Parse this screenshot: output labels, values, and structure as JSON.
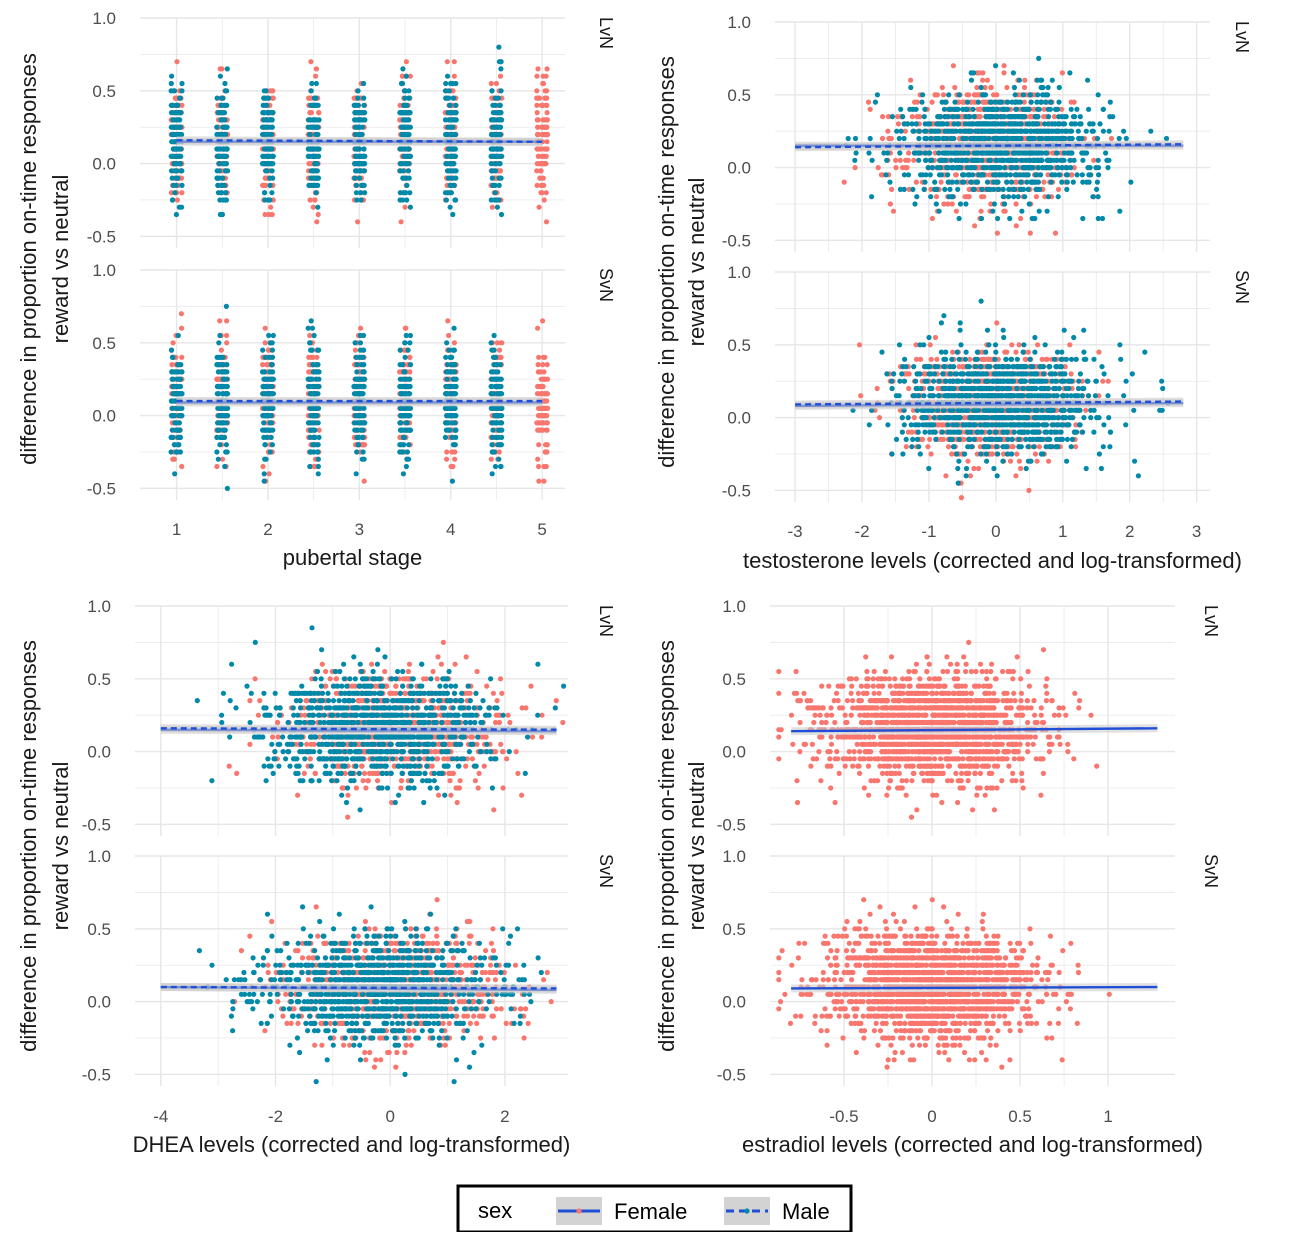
{
  "colors": {
    "female": "#F8766D",
    "male": "#0089A8",
    "fit_line": "#1F4FD6",
    "grid": "#E6E6E6",
    "ribbon": "#C9C9C9"
  },
  "legend": {
    "title": "sex",
    "items": [
      {
        "label": "Female",
        "linetype": "solid"
      },
      {
        "label": "Male",
        "linetype": "dashed"
      }
    ]
  },
  "chart_data": [
    {
      "type": "scatter",
      "xlabel": "pubertal stage",
      "ylabel_lines": [
        "difference in proportion on-time responses",
        "reward vs neutral"
      ],
      "xlim": [
        0.6,
        5.25
      ],
      "ylim": [
        -0.58,
        1.0
      ],
      "xticks": [
        1,
        2,
        3,
        4,
        5
      ],
      "yticks": [
        -0.5,
        0.0,
        0.5,
        1.0
      ],
      "grid": true,
      "facets": [
        {
          "label": "LvN",
          "fits": {
            "Female": [
              [
                1,
                0.15
              ],
              [
                5,
                0.15
              ]
            ],
            "Male": [
              [
                1,
                0.16
              ],
              [
                5,
                0.15
              ]
            ]
          }
        },
        {
          "label": "SvN",
          "fits": {
            "Female": [
              [
                1,
                0.09
              ],
              [
                5,
                0.09
              ]
            ],
            "Male": [
              [
                1,
                0.1
              ],
              [
                5,
                0.1
              ]
            ]
          }
        }
      ],
      "points": {
        "female": {
          "x": [
            1,
            1.5,
            2,
            2.5,
            3,
            3.5,
            4,
            4.5,
            5
          ],
          "y_range": [
            -0.45,
            0.7
          ],
          "spread": 0.06
        },
        "male": {
          "x": [
            1,
            1.5,
            2,
            2.5,
            3,
            3.5,
            4,
            4.5
          ],
          "y_range": [
            -0.5,
            0.8
          ],
          "spread": 0.06
        }
      }
    },
    {
      "type": "scatter",
      "xlabel": "testosterone levels (corrected and log-transformed)",
      "ylabel_lines": [
        "difference in proportion on-time responses",
        "reward vs neutral"
      ],
      "xlim": [
        -3.3,
        3.2
      ],
      "ylim": [
        -0.58,
        1.0
      ],
      "xticks": [
        -3,
        -2,
        -1,
        0,
        1,
        2,
        3
      ],
      "yticks": [
        -0.5,
        0.0,
        0.5,
        1.0
      ],
      "grid": true,
      "facets": [
        {
          "label": "LvN",
          "fits": {
            "Female": [
              [
                -3,
                0.15
              ],
              [
                2.8,
                0.15
              ]
            ],
            "Male": [
              [
                -3,
                0.14
              ],
              [
                2.8,
                0.16
              ]
            ]
          }
        },
        {
          "label": "SvN",
          "fits": {
            "Female": [
              [
                -3,
                0.08
              ],
              [
                2.8,
                0.1
              ]
            ],
            "Male": [
              [
                -3,
                0.09
              ],
              [
                2.8,
                0.11
              ]
            ]
          }
        }
      ],
      "points": {
        "female": {
          "x_center": -0.1,
          "x_sd": 0.6
        },
        "male": {
          "x_center": 0.1,
          "x_sd": 0.75
        }
      }
    },
    {
      "type": "scatter",
      "xlabel": "DHEA levels (corrected and log-transformed)",
      "ylabel_lines": [
        "difference in proportion on-time responses",
        "reward vs neutral"
      ],
      "xlim": [
        -4.45,
        3.1
      ],
      "ylim": [
        -0.58,
        1.0
      ],
      "xticks": [
        -4,
        -2,
        0,
        2
      ],
      "yticks": [
        -0.5,
        0.0,
        0.5,
        1.0
      ],
      "grid": true,
      "facets": [
        {
          "label": "LvN",
          "fits": {
            "Female": [
              [
                -4,
                0.15
              ],
              [
                2.9,
                0.14
              ]
            ],
            "Male": [
              [
                -4,
                0.16
              ],
              [
                2.9,
                0.15
              ]
            ]
          }
        },
        {
          "label": "SvN",
          "fits": {
            "Female": [
              [
                -4,
                0.1
              ],
              [
                2.9,
                0.08
              ]
            ],
            "Male": [
              [
                -4,
                0.1
              ],
              [
                2.9,
                0.09
              ]
            ]
          }
        }
      ],
      "points": {
        "female": {
          "x_center": 0.1,
          "x_sd": 0.9
        },
        "male": {
          "x_center": -0.2,
          "x_sd": 1.0
        }
      }
    },
    {
      "type": "scatter",
      "xlabel": "estradiol levels (corrected and log-transformed)",
      "ylabel_lines": [
        "difference in proportion on-time responses",
        "reward vs neutral"
      ],
      "xlim": [
        -0.92,
        1.38
      ],
      "ylim": [
        -0.58,
        1.0
      ],
      "xticks": [
        -0.5,
        0.0,
        0.5,
        1.0
      ],
      "yticks": [
        -0.5,
        0.0,
        0.5,
        1.0
      ],
      "grid": true,
      "facets": [
        {
          "label": "LvN",
          "fits": {
            "Female": [
              [
                -0.8,
                0.14
              ],
              [
                1.28,
                0.16
              ]
            ]
          }
        },
        {
          "label": "SvN",
          "fits": {
            "Female": [
              [
                -0.8,
                0.09
              ],
              [
                1.28,
                0.1
              ]
            ]
          }
        }
      ],
      "points": {
        "female": {
          "x_center": 0.0,
          "x_sd": 0.3
        }
      }
    }
  ]
}
